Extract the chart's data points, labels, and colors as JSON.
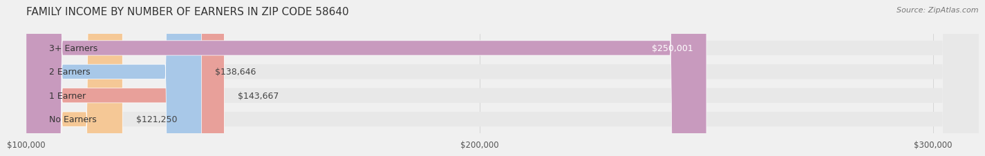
{
  "title": "FAMILY INCOME BY NUMBER OF EARNERS IN ZIP CODE 58640",
  "source": "Source: ZipAtlas.com",
  "categories": [
    "No Earners",
    "1 Earner",
    "2 Earners",
    "3+ Earners"
  ],
  "values": [
    121250,
    143667,
    138646,
    250001
  ],
  "labels": [
    "$121,250",
    "$143,667",
    "$138,646",
    "$250,001"
  ],
  "bar_colors": [
    "#f5c896",
    "#e8a09a",
    "#a8c8e8",
    "#c89abe"
  ],
  "bar_edge_colors": [
    "#d4a060",
    "#c07070",
    "#7090c0",
    "#9060a0"
  ],
  "background_color": "#f0f0f0",
  "bar_bg_color": "#e8e8e8",
  "xlim": [
    100000,
    310000
  ],
  "xticks": [
    100000,
    200000,
    300000
  ],
  "xticklabels": [
    "$100,000",
    "$200,000",
    "$300,000"
  ],
  "title_fontsize": 11,
  "source_fontsize": 8,
  "label_fontsize": 9,
  "category_fontsize": 9,
  "value_label_color_inside": "#ffffff",
  "value_label_color_outside": "#555555"
}
